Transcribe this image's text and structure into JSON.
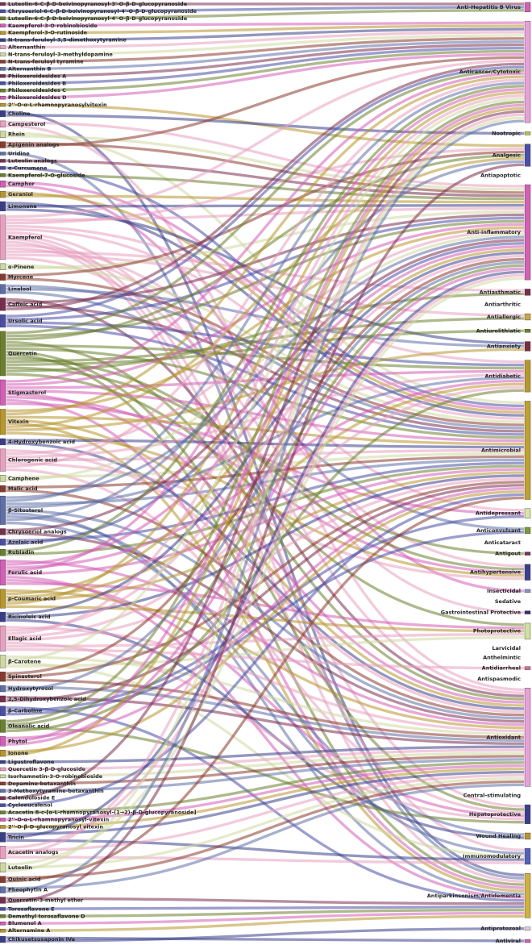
{
  "chart_data": {
    "type": "sankey",
    "palette": [
      "#7a2d4f",
      "#4b4ea6",
      "#6b7f2e",
      "#d35fb7",
      "#b8962e",
      "#3b3f8a",
      "#e8a0c0",
      "#cfd8a0",
      "#8a3b2e",
      "#5f6fa8"
    ],
    "sources": [
      {
        "name": "Luteolin-6-C-β-D-boivinopyranosyl-3'-O-β-D-glucopyranoside",
        "targets": [
          0
        ]
      },
      {
        "name": "Chrysoeriol-6-C-β-D-boivinopyranosyl-4'-O-β-D-glucopyranoside",
        "targets": [
          0
        ]
      },
      {
        "name": "Luteolin-6-C-β-D-boivinopyranosyl-4'-O-β-D-glucopyranoside",
        "targets": [
          0
        ]
      },
      {
        "name": "Kaempferol-3-O-robinobioside",
        "targets": [
          1
        ]
      },
      {
        "name": "Kaempferol-3-O-rutinoside",
        "targets": [
          1
        ]
      },
      {
        "name": "N-trans-feruloyl-3,5-dimethoxytyramine",
        "targets": [
          1
        ]
      },
      {
        "name": "Alternanthin",
        "targets": [
          1
        ]
      },
      {
        "name": "N-trans-feruloyl-3-methyldopamine",
        "targets": [
          1
        ]
      },
      {
        "name": "N-trans-feruloyl tyramine",
        "targets": [
          1
        ]
      },
      {
        "name": "Alternanthin B",
        "targets": [
          1
        ]
      },
      {
        "name": "Philoxeroidesides A",
        "targets": [
          1
        ]
      },
      {
        "name": "Philoxeroidesides B",
        "targets": [
          1
        ]
      },
      {
        "name": "Philoxeroidesides C",
        "targets": [
          1
        ]
      },
      {
        "name": "Philoxeroidesides D",
        "targets": [
          1
        ]
      },
      {
        "name": "2''-O-α-L-rhamnopyranosylvitexin",
        "targets": [
          3
        ]
      },
      {
        "name": "Choline",
        "targets": [
          31,
          2
        ]
      },
      {
        "name": "Campesterol",
        "targets": [
          5,
          26
        ]
      },
      {
        "name": "Rhein",
        "targets": [
          12,
          5
        ]
      },
      {
        "name": "Apigenin analogs",
        "targets": [
          5,
          1
        ]
      },
      {
        "name": "Uridine",
        "targets": [
          31
        ]
      },
      {
        "name": "Luteolin analogs",
        "targets": [
          5
        ]
      },
      {
        "name": "α-Curcumene",
        "targets": [
          12
        ]
      },
      {
        "name": "Kaempferol-7-O-glucoside",
        "targets": [
          5
        ]
      },
      {
        "name": "Camphor",
        "targets": [
          12,
          18
        ]
      },
      {
        "name": "Geraniol",
        "targets": [
          12,
          5
        ]
      },
      {
        "name": "Limonene",
        "targets": [
          12,
          5,
          10
        ]
      },
      {
        "name": "Kaempferol",
        "targets": [
          1,
          5,
          3,
          11,
          12,
          26,
          28,
          30,
          31,
          13,
          17,
          6,
          8,
          20
        ]
      },
      {
        "name": "α-Pinene",
        "targets": [
          12,
          5
        ]
      },
      {
        "name": "Myrcene",
        "targets": [
          3,
          12
        ]
      },
      {
        "name": "Linalool",
        "targets": [
          12,
          10,
          14
        ]
      },
      {
        "name": "Caffeic acid",
        "targets": [
          26,
          5,
          12,
          1
        ]
      },
      {
        "name": "Ursolic acid",
        "targets": [
          1,
          5,
          11,
          12
        ]
      },
      {
        "name": "Quercetin",
        "targets": [
          1,
          5,
          3,
          26,
          11,
          12,
          28,
          31,
          17,
          8,
          9,
          16,
          6,
          21
        ]
      },
      {
        "name": "Stigmasterol",
        "targets": [
          1,
          5,
          11,
          12,
          26,
          17,
          31,
          13
        ]
      },
      {
        "name": "Vitexin",
        "targets": [
          5,
          1,
          12,
          26,
          31,
          3,
          10,
          17
        ]
      },
      {
        "name": "4-Hydroxybenzoic acid",
        "targets": [
          12,
          26
        ]
      },
      {
        "name": "Chlorogenic acid",
        "targets": [
          26,
          5,
          11,
          12,
          17,
          1,
          28
        ]
      },
      {
        "name": "Camphene",
        "targets": [
          12,
          5
        ]
      },
      {
        "name": "Malic acid",
        "targets": [
          12,
          26
        ]
      },
      {
        "name": "β-Sitosterol",
        "targets": [
          5,
          1,
          12,
          11,
          26,
          31,
          29,
          3,
          30
        ]
      },
      {
        "name": "Chrysoeriol analogs",
        "targets": [
          5,
          26
        ]
      },
      {
        "name": "Azelaic acid",
        "targets": [
          12,
          5
        ]
      },
      {
        "name": "Rubiadin",
        "targets": [
          1,
          12
        ]
      },
      {
        "name": "Ferulic acid",
        "targets": [
          26,
          5,
          11,
          1,
          12,
          31,
          28,
          21
        ]
      },
      {
        "name": "p-Coumaric acid",
        "targets": [
          26,
          5,
          11,
          12,
          1,
          21
        ]
      },
      {
        "name": "Ricinoleic acid",
        "targets": [
          5,
          12,
          29
        ]
      },
      {
        "name": "Ellagic acid",
        "targets": [
          26,
          5,
          1,
          11,
          12,
          28,
          21,
          24
        ]
      },
      {
        "name": "β-Carotene",
        "targets": [
          26,
          1,
          30,
          21
        ]
      },
      {
        "name": "Spinasterol",
        "targets": [
          5,
          12,
          26
        ]
      },
      {
        "name": "Hydroxytyrosol",
        "targets": [
          26,
          5
        ]
      },
      {
        "name": "2,5-Dihydroxybenzoic acid",
        "targets": [
          26,
          12
        ]
      },
      {
        "name": "β-Carboline",
        "targets": [
          31,
          13,
          14
        ]
      },
      {
        "name": "Oleanolic acid",
        "targets": [
          1,
          5,
          28,
          11
        ]
      },
      {
        "name": "Phytol",
        "targets": [
          12,
          1,
          5
        ]
      },
      {
        "name": "Ionone",
        "targets": [
          12,
          1
        ]
      },
      {
        "name": "Ligustroflavone",
        "targets": [
          26
        ]
      },
      {
        "name": "Quercetin 3-β-D-glucoside",
        "targets": [
          26
        ]
      },
      {
        "name": "Isorhamnetin-3-O-robinobioside",
        "targets": [
          26
        ]
      },
      {
        "name": "Dopamine-betaxanthin",
        "targets": [
          26
        ]
      },
      {
        "name": "3-Methoxytyramine-betaxanthin",
        "targets": [
          26
        ]
      },
      {
        "name": "Calenduloside E",
        "targets": [
          1
        ]
      },
      {
        "name": "Cycloeucalenol",
        "targets": [
          12
        ]
      },
      {
        "name": "Acacetin 8-c-[α-L-rhamnopyranosyl-(1→2)-β-D-glucopyranoside]",
        "targets": [
          26
        ]
      },
      {
        "name": "2''-O-α-L-rhamnopyranosyl-vitexin",
        "targets": [
          26
        ]
      },
      {
        "name": "2''-O-β-D-glucopyranosyl vitexin",
        "targets": [
          26
        ]
      },
      {
        "name": "Tricin",
        "targets": [
          26,
          5,
          30
        ]
      },
      {
        "name": "Acacetin analogs",
        "targets": [
          5,
          26,
          1,
          30
        ]
      },
      {
        "name": "Luteolin",
        "targets": [
          5,
          26,
          1
        ]
      },
      {
        "name": "Quinic acid",
        "targets": [
          26,
          12
        ]
      },
      {
        "name": "Pheophytin A",
        "targets": [
          26,
          1
        ]
      },
      {
        "name": "Quercetin-3-methyl ether",
        "targets": [
          31,
          3
        ]
      },
      {
        "name": "Torosaflavone E",
        "targets": [
          31
        ]
      },
      {
        "name": "Demethyl torosaflavone D",
        "targets": [
          31
        ]
      },
      {
        "name": "Blumenol A",
        "targets": [
          31
        ]
      },
      {
        "name": "Alternamine A",
        "targets": [
          31
        ]
      },
      {
        "name": "Chikusetsusaponin IVa",
        "targets": [
          33,
          32
        ]
      }
    ],
    "activities": [
      {
        "name": "Anti-Hepatitis B Virus",
        "color": "#d35fb7"
      },
      {
        "name": "Anticancer/Cytotoxic",
        "color": "#e8a0d8"
      },
      {
        "name": "Nootropic",
        "color": "#b5c24a"
      },
      {
        "name": "Analgesic",
        "color": "#4b4ea6"
      },
      {
        "name": "Antiapoptotic",
        "color": "#d04a7a"
      },
      {
        "name": "Anti-inflammatory",
        "color": "#d35fb7"
      },
      {
        "name": "Antiasthmatic",
        "color": "#7a2d4f"
      },
      {
        "name": "Antiarthritic",
        "color": "#f0b4c8"
      },
      {
        "name": "Antiallergic",
        "color": "#c9a64a"
      },
      {
        "name": "Antiurolithiatic",
        "color": "#6b7f2e"
      },
      {
        "name": "Antianxiety",
        "color": "#7a2d3a"
      },
      {
        "name": "Antidiabetic",
        "color": "#b8962e"
      },
      {
        "name": "Antimicrobial",
        "color": "#c0a030"
      },
      {
        "name": "Antidepressant",
        "color": "#d8e4a8"
      },
      {
        "name": "Anticonvulsant",
        "color": "#7a9a3a"
      },
      {
        "name": "Anticataract",
        "color": "#5a7a2a"
      },
      {
        "name": "Antigout",
        "color": "#7a2d5f"
      },
      {
        "name": "Antihypertensive",
        "color": "#3b3f8a"
      },
      {
        "name": "Insecticidal",
        "color": "#8890d0"
      },
      {
        "name": "Sedative",
        "color": "#8a5a2e"
      },
      {
        "name": "Gastrointestinal Protective",
        "color": "#2e3070"
      },
      {
        "name": "Photoprotective",
        "color": "#cfe0a0"
      },
      {
        "name": "Larvicidal",
        "color": "#8aaa3a"
      },
      {
        "name": "Anthelmintic",
        "color": "#a08030"
      },
      {
        "name": "Antidiarrheal",
        "color": "#d07090"
      },
      {
        "name": "Antispasmodic",
        "color": "#5a1f3a"
      },
      {
        "name": "Antioxidant",
        "color": "#e8a0d8"
      },
      {
        "name": "Central-stimulating",
        "color": "#e0a8e0"
      },
      {
        "name": "Hepatoprotective",
        "color": "#3b3f8a"
      },
      {
        "name": "Wound Healing",
        "color": "#b8962e"
      },
      {
        "name": "Immunomodulatory",
        "color": "#5560b8"
      },
      {
        "name": "Antiparkinsonism/Antidementia",
        "color": "#d0b040"
      },
      {
        "name": "Antiprotozoal",
        "color": "#e8c8e0"
      },
      {
        "name": "Antiviral",
        "color": "#d35fb7"
      }
    ]
  }
}
